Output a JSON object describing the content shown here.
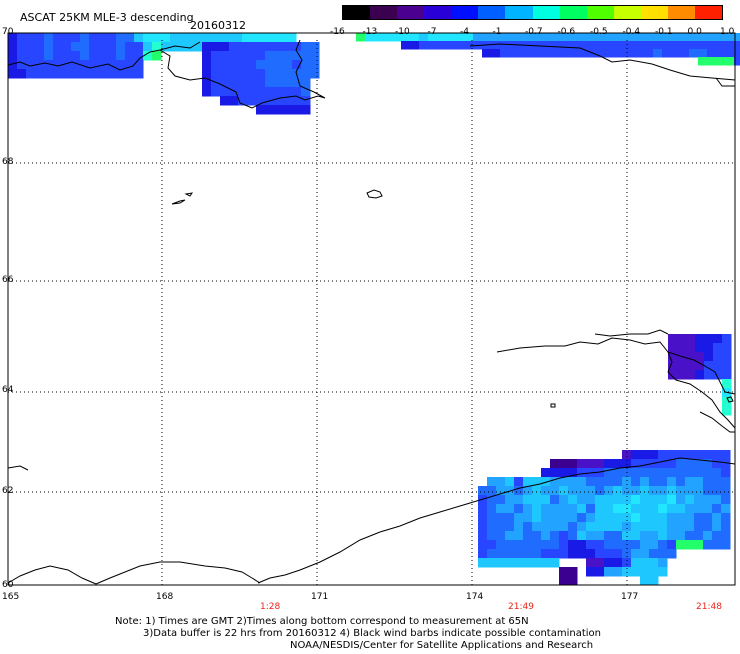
{
  "header": {
    "title": "ASCAT 25KM MLE-3 descending",
    "date": "20160312"
  },
  "colorbar": {
    "labels": [
      "-16",
      "-13",
      "-10",
      "-7",
      "-4",
      "-1",
      "-0.7",
      "-0.6",
      "-0.5",
      "-0.4",
      "-0.1",
      "0.0",
      "1.0"
    ],
    "colors": [
      "#000000",
      "#3b0050",
      "#4b0090",
      "#2a00d8",
      "#0010ff",
      "#0060ff",
      "#00b4ff",
      "#00ffe0",
      "#00ff60",
      "#50ff00",
      "#c8ff00",
      "#ffe000",
      "#ff8c00",
      "#ff2000"
    ]
  },
  "map": {
    "lat_labels": [
      "70",
      "68",
      "66",
      "64",
      "62",
      "60"
    ],
    "lon_labels": [
      "165",
      "168",
      "171",
      "174",
      "177"
    ],
    "time_labels": [
      "1:28",
      "21:49",
      "21:48"
    ],
    "time_color": "#e8251b",
    "swath_colors": {
      "deep_purple": "#3c0090",
      "purple": "#4a12c8",
      "dark_blue": "#1a1ae6",
      "blue": "#2846ff",
      "mid_blue": "#1f6cff",
      "light_blue": "#21a3ff",
      "sky": "#1ec8ff",
      "cyan": "#22e6ff",
      "teal": "#23ffd0",
      "green": "#22ff6a"
    }
  },
  "footer": {
    "note_line1": "Note: 1) Times are GMT 2)Times along bottom correspond to measurement at 65N",
    "note_line2": "3)Data buffer is 22 hrs from 20160312 4) Black wind barbs indicate possible contamination",
    "credit": "NOAA/NESDIS/Center for Satellite Applications and Research"
  }
}
